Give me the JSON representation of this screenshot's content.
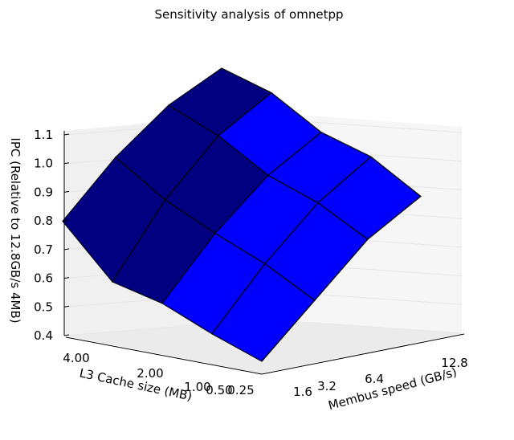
{
  "chart_data": {
    "type": "surface3d",
    "title": "Sensitivity analysis of omnetpp",
    "xlabel": "Membus speed (GB/s)",
    "ylabel": "L3 Cache size (MB)",
    "zlabel": "IPC (Relative to 12.8GB/s 4MB)",
    "x_ticks": [
      "1.6",
      "3.2",
      "6.4",
      "12.8"
    ],
    "y_ticks": [
      "4.00",
      "2.00",
      "1.00",
      "0.50",
      "0.25"
    ],
    "z_ticks": [
      "0.4",
      "0.5",
      "0.6",
      "0.7",
      "0.8",
      "0.9",
      "1.0",
      "1.1"
    ],
    "zlim": [
      0.4,
      1.1
    ],
    "membus_speeds": [
      1.6,
      3.2,
      6.4,
      12.8
    ],
    "cache_sizes": [
      4.0,
      2.0,
      1.0,
      0.5,
      0.25
    ],
    "ipc_grid": [
      [
        0.62,
        0.79,
        0.92,
        1.0
      ],
      [
        0.48,
        0.71,
        0.88,
        0.98
      ],
      [
        0.47,
        0.66,
        0.81,
        0.91
      ],
      [
        0.43,
        0.62,
        0.78,
        0.89
      ],
      [
        0.4,
        0.56,
        0.72,
        0.82
      ]
    ],
    "colors": {
      "surface_dark": "#000080",
      "surface_bright": "#0000ff",
      "edge": "#000000",
      "pane": "#f2f2f2",
      "grid": "#e6e6e6"
    }
  }
}
